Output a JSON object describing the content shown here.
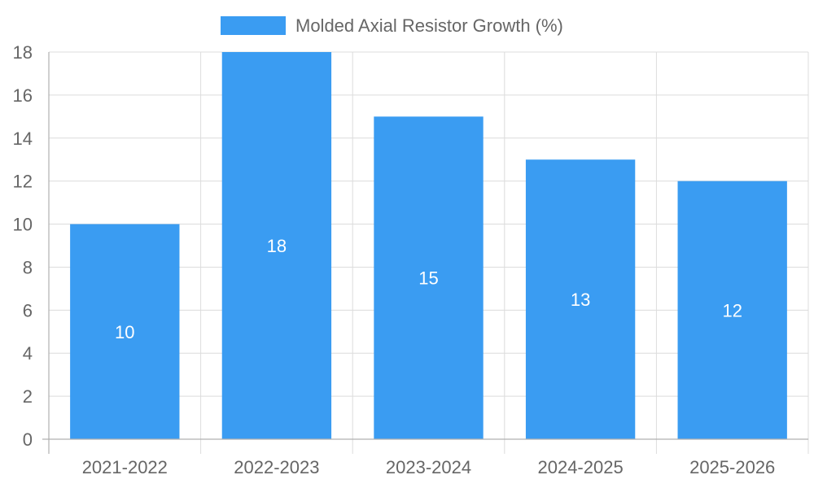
{
  "chart_data": {
    "type": "bar",
    "categories": [
      "2021-2022",
      "2022-2023",
      "2023-2024",
      "2024-2025",
      "2025-2026"
    ],
    "series": [
      {
        "name": "Molded Axial Resistor Growth (%)",
        "values": [
          10,
          18,
          15,
          13,
          12
        ],
        "color": "#3a9cf2"
      }
    ],
    "ylim": [
      0,
      18
    ],
    "yticks": [
      0,
      2,
      4,
      6,
      8,
      10,
      12,
      14,
      16,
      18
    ],
    "grid": true,
    "legend_position": "top-center",
    "data_labels": true,
    "title": "",
    "xlabel": "",
    "ylabel": ""
  }
}
